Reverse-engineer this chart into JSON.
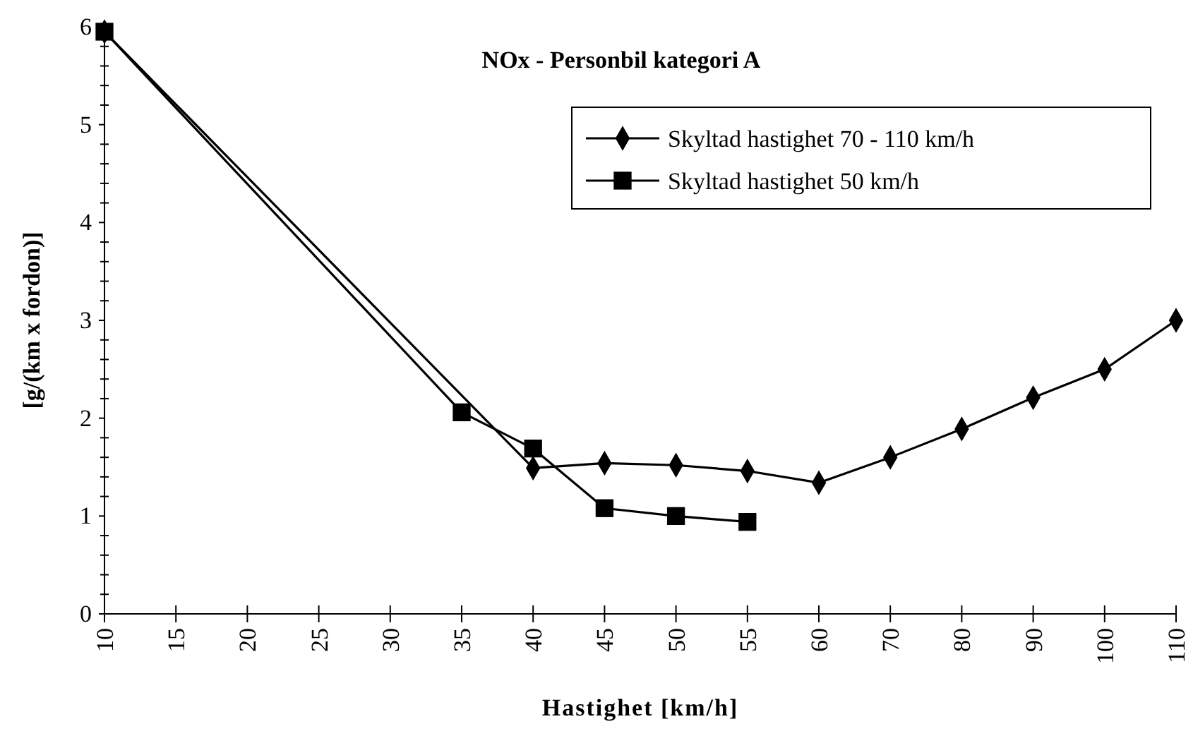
{
  "chart_data": {
    "type": "line",
    "title": "NOx - Personbil kategori A",
    "xlabel": "Hastighet [km/h]",
    "ylabel": "[g/(km x fordon)]",
    "categories": [
      "10",
      "15",
      "20",
      "25",
      "30",
      "35",
      "40",
      "45",
      "50",
      "55",
      "60",
      "70",
      "80",
      "90",
      "100",
      "110"
    ],
    "series": [
      {
        "name": "Skyltad hastighet 70 - 110 km/h",
        "color": "#000000",
        "marker": "diamond",
        "values": [
          5.95,
          null,
          null,
          null,
          null,
          null,
          1.49,
          1.54,
          1.52,
          1.46,
          1.34,
          1.6,
          1.89,
          2.21,
          2.5,
          3.0
        ]
      },
      {
        "name": "Skyltad hastighet 50 km/h",
        "color": "#000000",
        "marker": "square",
        "values": [
          5.95,
          null,
          null,
          null,
          null,
          2.06,
          1.69,
          1.08,
          1.0,
          0.94,
          null,
          null,
          null,
          null,
          null,
          null
        ]
      }
    ],
    "ylim": [
      0,
      6
    ],
    "yticks": [
      0,
      {
        "value": 0.2,
        "label": null
      },
      {
        "value": 0.4,
        "label": null
      },
      {
        "value": 0.6,
        "label": null
      },
      {
        "value": 0.8,
        "label": null
      },
      1,
      {
        "value": 1.2,
        "label": null
      },
      {
        "value": 1.4,
        "label": null
      },
      {
        "value": 1.6,
        "label": null
      },
      {
        "value": 1.8,
        "label": null
      },
      2,
      {
        "value": 2.2,
        "label": null
      },
      {
        "value": 2.4,
        "label": null
      },
      {
        "value": 2.6,
        "label": null
      },
      {
        "value": 2.8,
        "label": null
      },
      3,
      {
        "value": 3.2,
        "label": null
      },
      {
        "value": 3.4,
        "label": null
      },
      {
        "value": 3.6,
        "label": null
      },
      {
        "value": 3.8,
        "label": null
      },
      4,
      {
        "value": 4.2,
        "label": null
      },
      {
        "value": 4.4,
        "label": null
      },
      {
        "value": 4.6,
        "label": null
      },
      {
        "value": 4.8,
        "label": null
      },
      5,
      {
        "value": 5.2,
        "label": null
      },
      {
        "value": 5.4,
        "label": null
      },
      {
        "value": 5.6,
        "label": null
      },
      {
        "value": 5.8,
        "label": null
      },
      6
    ],
    "grid": false,
    "legend": "top right"
  }
}
